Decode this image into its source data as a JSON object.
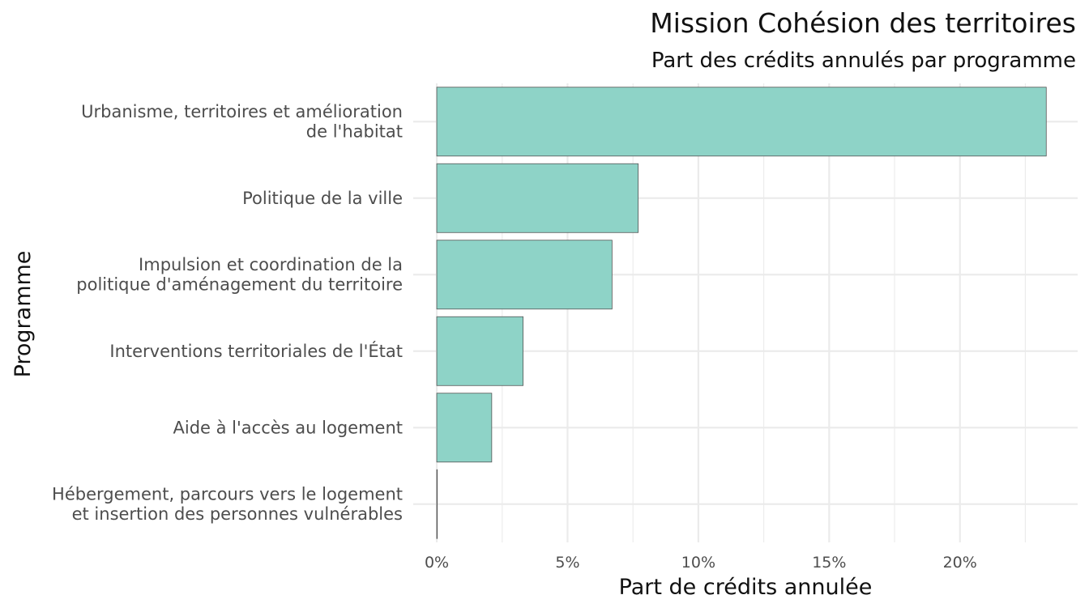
{
  "chart_data": {
    "type": "bar",
    "orientation": "horizontal",
    "title": "Mission Cohésion des territoires",
    "subtitle": "Part des crédits annulés par programme",
    "xlabel": "Part de crédits annulée",
    "ylabel": "Programme",
    "categories": [
      [
        "Urbanisme, territoires et amélioration",
        "de l'habitat"
      ],
      [
        "Politique de la ville"
      ],
      [
        "Impulsion et coordination de la",
        "politique d'aménagement du territoire"
      ],
      [
        "Interventions territoriales de l'État"
      ],
      [
        "Aide à l'accès au logement"
      ],
      [
        "Hébergement, parcours vers le logement",
        "et insertion des personnes vulnérables"
      ]
    ],
    "values": [
      23.3,
      7.7,
      6.7,
      3.3,
      2.1,
      0.0
    ],
    "xlim": [
      -0.9,
      24.5
    ],
    "xticks": [
      0,
      5,
      10,
      15,
      20
    ],
    "xtick_labels": [
      "0%",
      "5%",
      "10%",
      "15%",
      "20%"
    ],
    "grid": true,
    "legend": "none",
    "bar_color": "#8ed3c7",
    "bar_outline": "#555555"
  }
}
